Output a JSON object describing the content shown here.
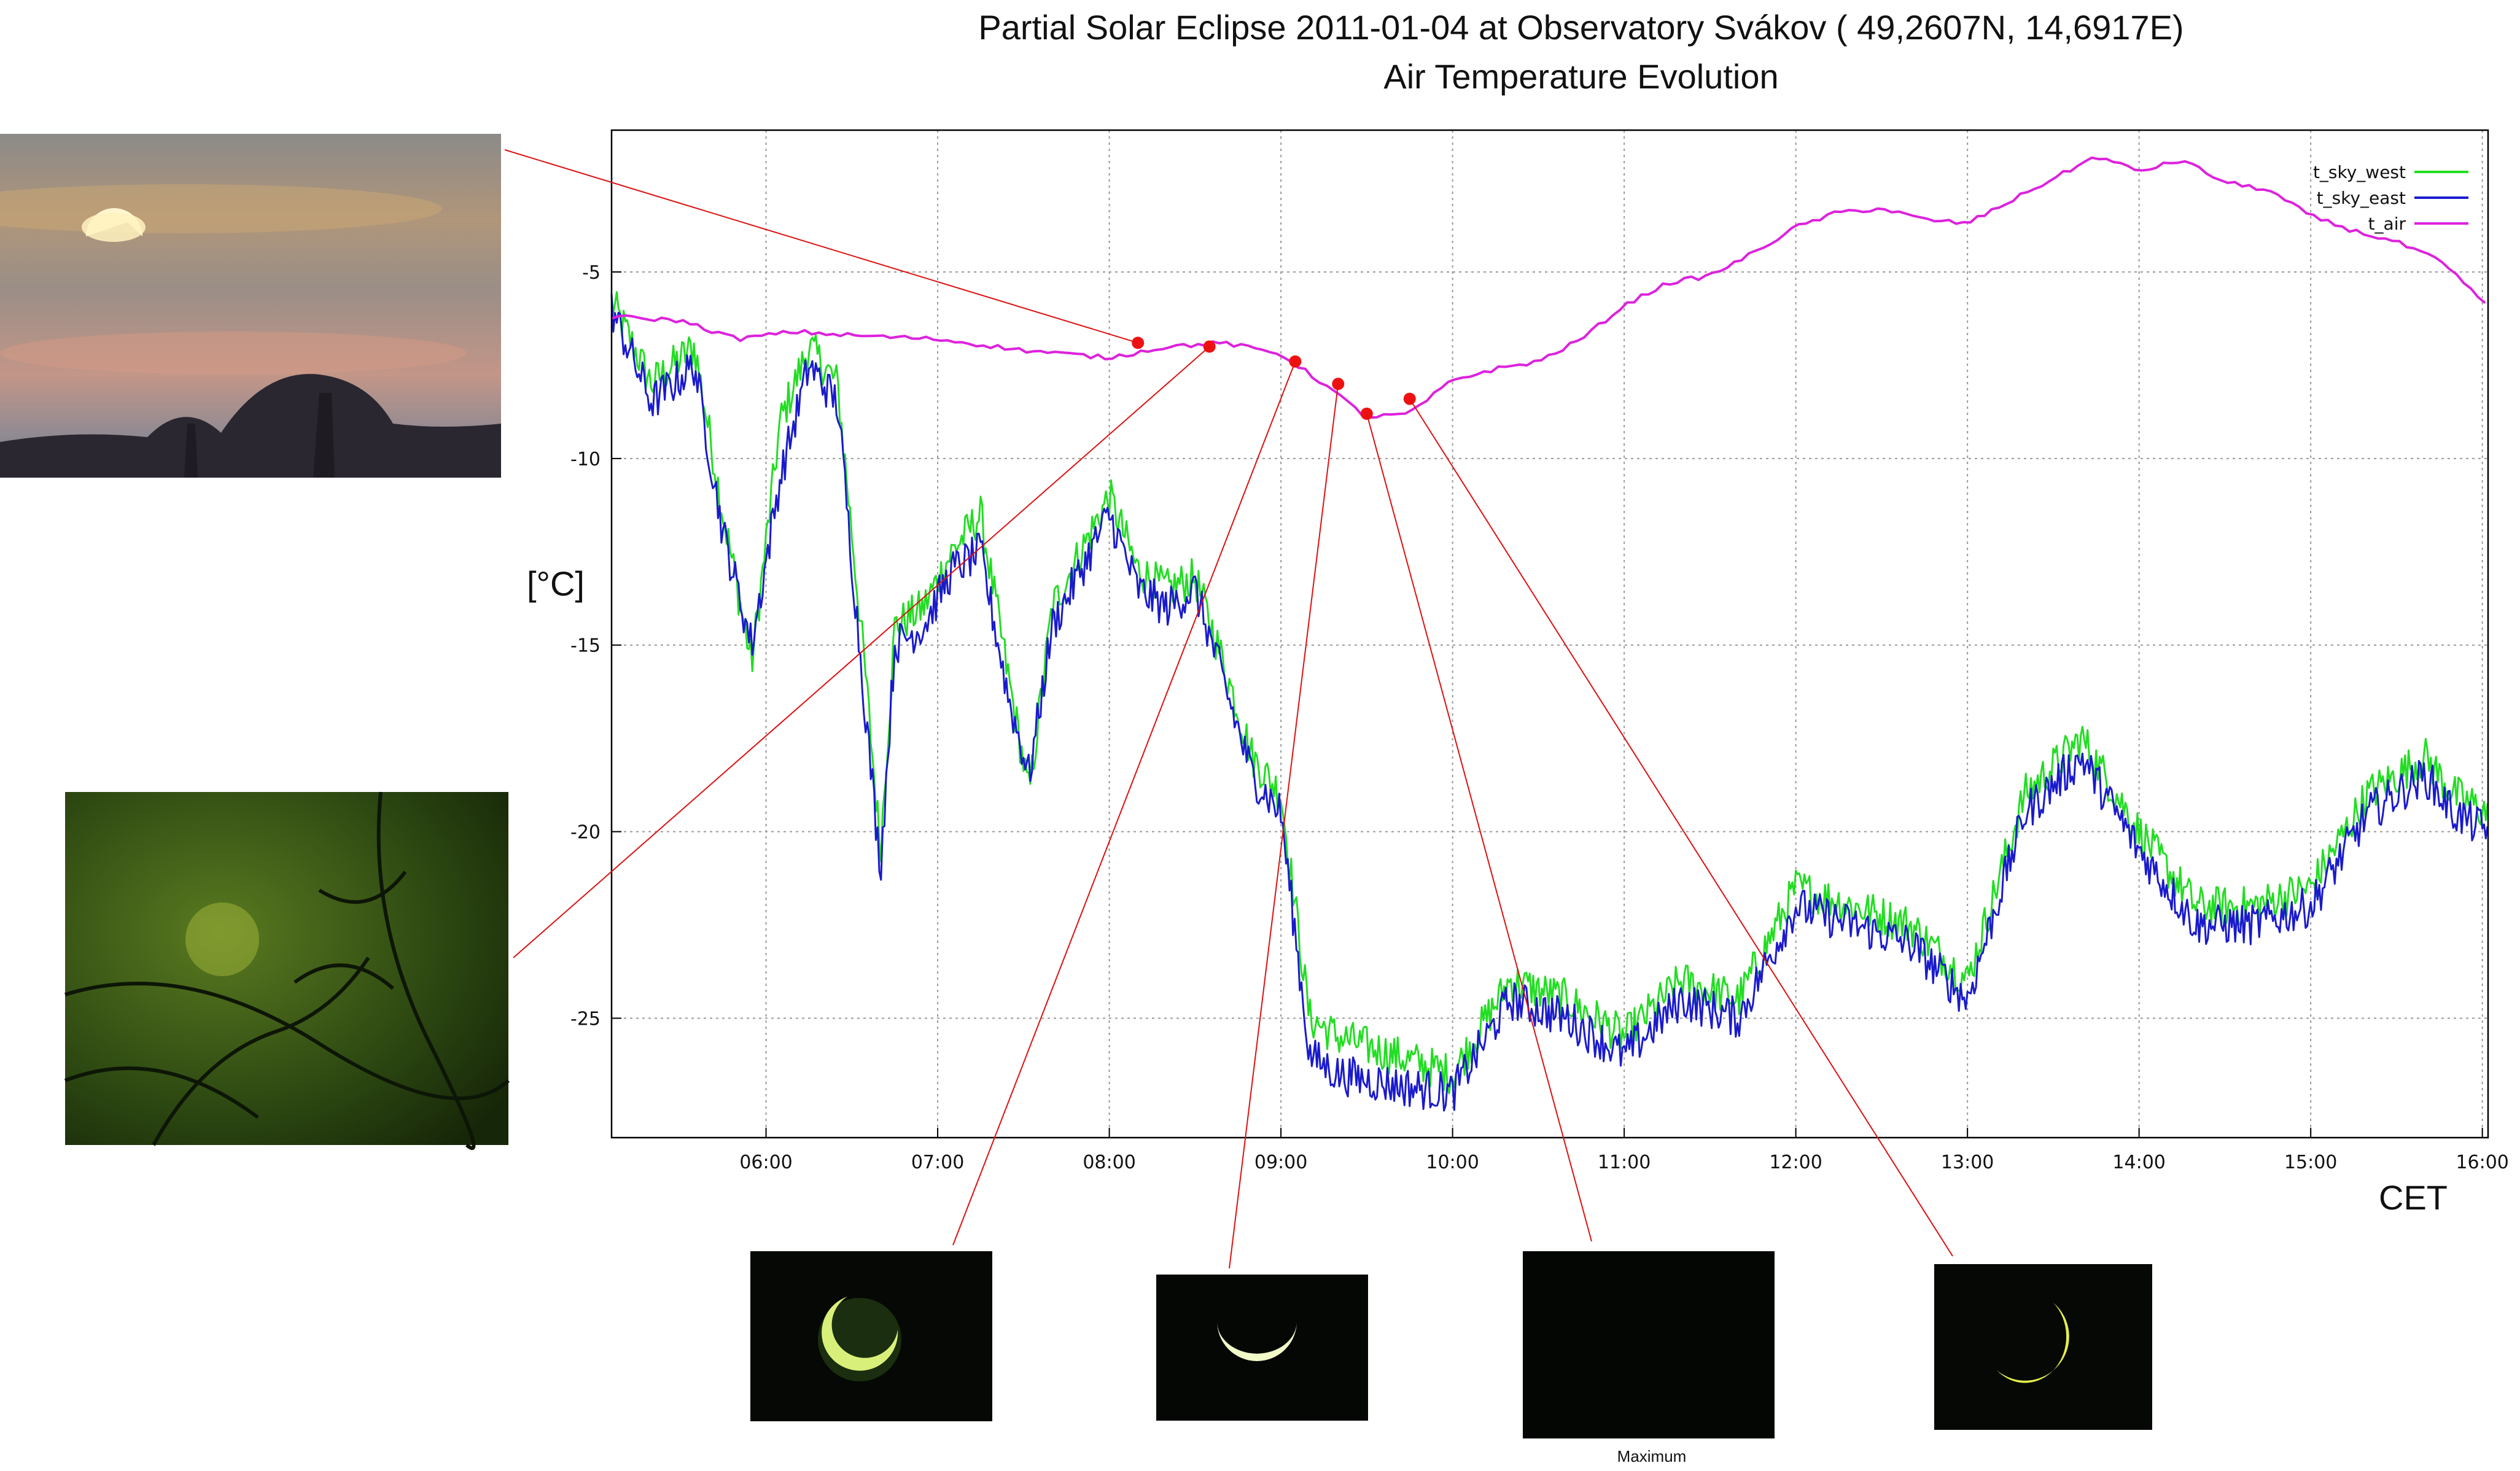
{
  "title_line1": "Partial Solar Eclipse 2011-01-04 at Observatory Svákov ( 49,2607N, 14,6917E)",
  "title_line2": "Air Temperature Evolution",
  "maximum_caption": "Maximum",
  "chart_data": {
    "type": "line",
    "title": "Partial Solar Eclipse 2011-01-04 at Observatory Svákov ( 49,2607N, 14,6917E) Air Temperature Evolution",
    "xlabel": "CET",
    "ylabel": "[°C]",
    "xlim": [
      "05:06",
      "16:02"
    ],
    "ylim": [
      -28.2,
      -1.2
    ],
    "x_ticks": [
      "06:00",
      "07:00",
      "08:00",
      "09:00",
      "10:00",
      "11:00",
      "12:00",
      "13:00",
      "14:00",
      "15:00",
      "16:00"
    ],
    "y_ticks": [
      -5,
      -10,
      -15,
      -20,
      -25
    ],
    "grid": true,
    "legend_position": "top-right",
    "series": [
      {
        "name": "t_sky_west",
        "color": "#22dd22",
        "x": [
          "05:06",
          "05:20",
          "05:35",
          "05:45",
          "05:55",
          "06:05",
          "06:15",
          "06:25",
          "06:35",
          "06:40",
          "06:45",
          "06:55",
          "07:05",
          "07:15",
          "07:25",
          "07:32",
          "07:40",
          "07:50",
          "08:00",
          "08:10",
          "08:20",
          "08:30",
          "08:40",
          "08:50",
          "08:55",
          "09:00",
          "09:10",
          "09:20",
          "09:40",
          "10:00",
          "10:20",
          "10:40",
          "11:00",
          "11:20",
          "11:40",
          "12:00",
          "12:20",
          "12:40",
          "13:00",
          "13:10",
          "13:20",
          "13:40",
          "14:00",
          "14:20",
          "14:40",
          "15:00",
          "15:20",
          "15:40",
          "15:50",
          "16:02"
        ],
        "y": [
          -5.8,
          -8.0,
          -7.0,
          -11.5,
          -15.5,
          -9.0,
          -7.0,
          -8.0,
          -16.0,
          -20.5,
          -14.5,
          -14.0,
          -12.5,
          -11.5,
          -16.0,
          -19.0,
          -14.0,
          -12.5,
          -11.0,
          -13.0,
          -13.5,
          -13.2,
          -15.5,
          -18.0,
          -18.5,
          -19.0,
          -25.0,
          -25.5,
          -26.0,
          -26.5,
          -24.0,
          -24.5,
          -25.5,
          -24.0,
          -24.5,
          -21.5,
          -22.0,
          -22.5,
          -24.0,
          -21.5,
          -19.0,
          -17.5,
          -20.0,
          -22.0,
          -22.0,
          -21.5,
          -19.0,
          -18.0,
          -19.0,
          -19.5
        ]
      },
      {
        "name": "t_sky_east",
        "color": "#1a1acc",
        "x": [
          "05:06",
          "05:20",
          "05:35",
          "05:45",
          "05:55",
          "06:05",
          "06:15",
          "06:25",
          "06:35",
          "06:40",
          "06:45",
          "06:55",
          "07:05",
          "07:15",
          "07:25",
          "07:32",
          "07:40",
          "07:50",
          "08:00",
          "08:10",
          "08:20",
          "08:30",
          "08:40",
          "08:50",
          "08:55",
          "09:00",
          "09:10",
          "09:20",
          "09:40",
          "10:00",
          "10:20",
          "10:40",
          "11:00",
          "11:20",
          "11:40",
          "12:00",
          "12:20",
          "12:40",
          "13:00",
          "13:10",
          "13:20",
          "13:40",
          "14:00",
          "14:20",
          "14:40",
          "15:00",
          "15:20",
          "15:40",
          "15:50",
          "16:02"
        ],
        "y": [
          -6.0,
          -8.5,
          -7.5,
          -12.0,
          -15.0,
          -10.5,
          -7.5,
          -8.5,
          -17.0,
          -21.0,
          -15.0,
          -14.5,
          -13.0,
          -12.5,
          -16.5,
          -18.5,
          -14.5,
          -13.0,
          -11.5,
          -13.5,
          -14.0,
          -13.5,
          -16.0,
          -18.5,
          -19.0,
          -19.5,
          -26.0,
          -26.5,
          -26.8,
          -27.0,
          -24.5,
          -25.0,
          -26.0,
          -24.5,
          -25.0,
          -22.0,
          -22.5,
          -23.0,
          -24.5,
          -22.0,
          -19.5,
          -18.0,
          -20.5,
          -22.5,
          -22.5,
          -22.0,
          -19.5,
          -18.5,
          -19.5,
          -20.0
        ]
      },
      {
        "name": "t_air",
        "color": "#dd22dd",
        "x": [
          "05:06",
          "05:30",
          "05:50",
          "06:10",
          "06:30",
          "07:00",
          "07:30",
          "08:00",
          "08:20",
          "08:40",
          "09:00",
          "09:15",
          "09:30",
          "09:45",
          "10:00",
          "10:15",
          "10:30",
          "10:45",
          "11:00",
          "11:15",
          "11:30",
          "11:45",
          "12:00",
          "12:15",
          "12:30",
          "12:45",
          "13:00",
          "13:15",
          "13:30",
          "13:45",
          "14:00",
          "14:15",
          "14:30",
          "14:45",
          "15:00",
          "15:15",
          "15:30",
          "15:45",
          "16:02"
        ],
        "y": [
          -6.2,
          -6.3,
          -6.8,
          -6.6,
          -6.7,
          -6.8,
          -7.1,
          -7.3,
          -7.0,
          -6.9,
          -7.2,
          -8.0,
          -8.9,
          -8.8,
          -7.9,
          -7.6,
          -7.4,
          -6.8,
          -5.9,
          -5.3,
          -5.1,
          -4.5,
          -3.8,
          -3.4,
          -3.3,
          -3.6,
          -3.7,
          -3.1,
          -2.5,
          -1.9,
          -2.3,
          -2.0,
          -2.6,
          -2.8,
          -3.5,
          -3.9,
          -4.2,
          -4.7,
          -5.9
        ]
      }
    ],
    "annotations": [
      {
        "type": "marker",
        "series": "t_air",
        "x": "08:10",
        "y": -6.9
      },
      {
        "type": "marker",
        "series": "t_air",
        "x": "08:35",
        "y": -7.0
      },
      {
        "type": "marker",
        "series": "t_air",
        "x": "09:05",
        "y": -7.4
      },
      {
        "type": "marker",
        "series": "t_air",
        "x": "09:20",
        "y": -8.0
      },
      {
        "type": "marker",
        "series": "t_air",
        "x": "09:30",
        "y": -8.8
      },
      {
        "type": "marker",
        "series": "t_air",
        "x": "09:45",
        "y": -8.4
      }
    ]
  }
}
